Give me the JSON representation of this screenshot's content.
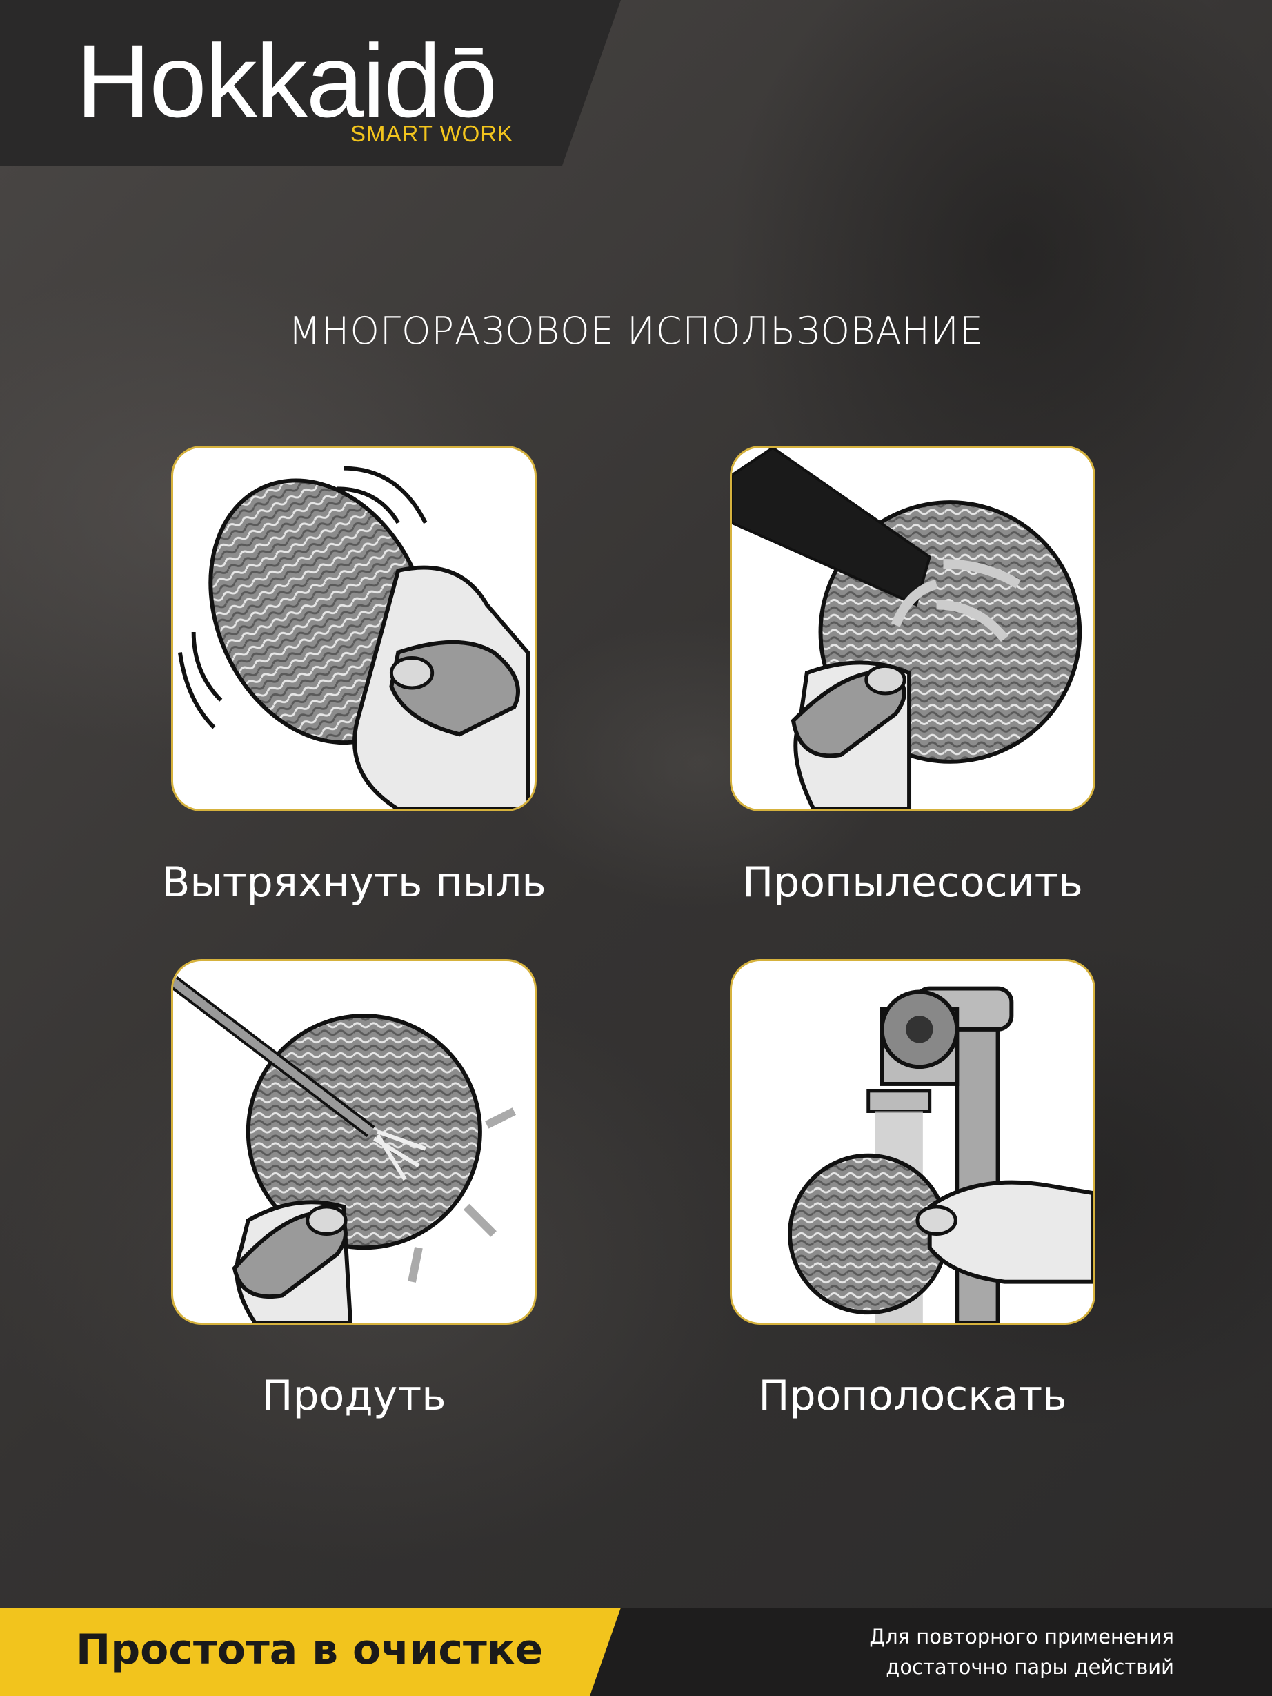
{
  "brand": {
    "name": "Hokkaidō",
    "tagline": "SMART WORK"
  },
  "title": "МНОГОРАЗОВОЕ ИСПОЛЬЗОВАНИЕ",
  "steps": [
    {
      "label": "Вытряхнуть пыль",
      "icon": "shake-filter-icon"
    },
    {
      "label": "Пропылесосить",
      "icon": "vacuum-filter-icon"
    },
    {
      "label": "Продуть",
      "icon": "blow-filter-icon"
    },
    {
      "label": "Прополоскать",
      "icon": "rinse-filter-icon"
    }
  ],
  "footer": {
    "slogan": "Простота в очистке",
    "note_line1": "Для повторного применения",
    "note_line2": "достаточно пары действий"
  },
  "colors": {
    "accent": "#f2c41d",
    "background": "#3a3837",
    "card": "#ffffff",
    "card_border": "#d6b23d"
  }
}
